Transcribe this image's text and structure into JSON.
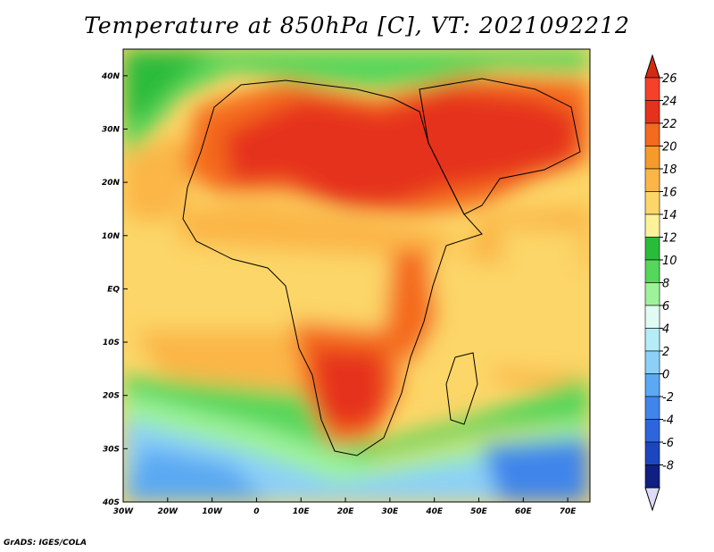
{
  "title": "Temperature at 850hPa [C], VT: 2021092212",
  "credit": "GrADS: IGES/COLA",
  "map": {
    "projection": "lat-lon",
    "lon_range": [
      -30,
      75
    ],
    "lat_range": [
      -40,
      45
    ],
    "lon_ticks": [
      {
        "value": -30,
        "label": "30W"
      },
      {
        "value": -20,
        "label": "20W"
      },
      {
        "value": -10,
        "label": "10W"
      },
      {
        "value": 0,
        "label": "0"
      },
      {
        "value": 10,
        "label": "10E"
      },
      {
        "value": 20,
        "label": "20E"
      },
      {
        "value": 30,
        "label": "30E"
      },
      {
        "value": 40,
        "label": "40E"
      },
      {
        "value": 50,
        "label": "50E"
      },
      {
        "value": 60,
        "label": "60E"
      },
      {
        "value": 70,
        "label": "70E"
      }
    ],
    "lat_ticks": [
      {
        "value": 40,
        "label": "40N"
      },
      {
        "value": 30,
        "label": "30N"
      },
      {
        "value": 20,
        "label": "20N"
      },
      {
        "value": 10,
        "label": "10N"
      },
      {
        "value": 0,
        "label": "EQ"
      },
      {
        "value": -10,
        "label": "10S"
      },
      {
        "value": -20,
        "label": "20S"
      },
      {
        "value": -30,
        "label": "30S"
      },
      {
        "value": -40,
        "label": "40S"
      }
    ]
  },
  "colorbar": {
    "levels": [
      {
        "label": "26",
        "color": "#f5412a"
      },
      {
        "label": "24",
        "color": "#e5321c"
      },
      {
        "label": "22",
        "color": "#f46a1f"
      },
      {
        "label": "20",
        "color": "#f79a2c"
      },
      {
        "label": "18",
        "color": "#fbb647"
      },
      {
        "label": "16",
        "color": "#fcd668"
      },
      {
        "label": "14",
        "color": "#fdf19a"
      },
      {
        "label": "12",
        "color": "#2bbb3a"
      },
      {
        "label": "10",
        "color": "#56d65a"
      },
      {
        "label": "8",
        "color": "#9ef29a"
      },
      {
        "label": "6",
        "color": "#e0fbf4"
      },
      {
        "label": "4",
        "color": "#b4ecf8"
      },
      {
        "label": "2",
        "color": "#8cd0f8"
      },
      {
        "label": "0",
        "color": "#5aa9f2"
      },
      {
        "label": "-2",
        "color": "#3f85ea"
      },
      {
        "label": "-4",
        "color": "#2d66dc"
      },
      {
        "label": "-6",
        "color": "#1c46bd"
      },
      {
        "label": "-8",
        "color": "#0f1f82"
      }
    ],
    "top_color": "#d42a10",
    "bottom_color": "#dcdcf8"
  }
}
